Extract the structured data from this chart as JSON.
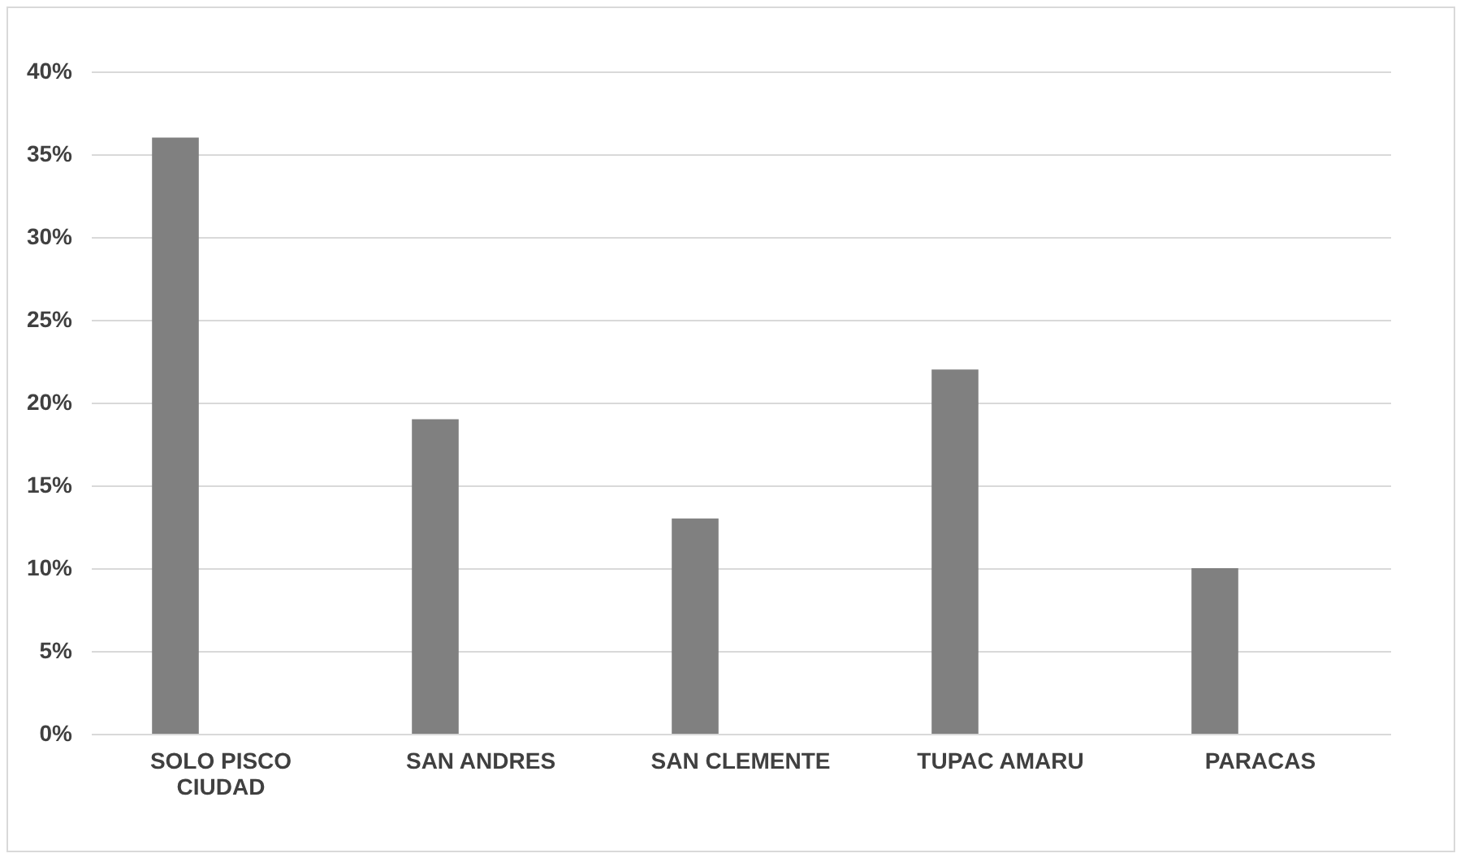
{
  "chart_data": {
    "type": "bar",
    "categories": [
      "SOLO PISCO CIUDAD",
      "SAN ANDRES",
      "SAN CLEMENTE",
      "TUPAC AMARU",
      "PARACAS"
    ],
    "values": [
      36,
      19,
      13,
      22,
      10
    ],
    "color": "#808080",
    "ylim": [
      0,
      40
    ],
    "yticks": [
      {
        "value": 0,
        "label": "0%"
      },
      {
        "value": 5,
        "label": "5%"
      },
      {
        "value": 10,
        "label": "10%"
      },
      {
        "value": 15,
        "label": "15%"
      },
      {
        "value": 20,
        "label": "20%"
      },
      {
        "value": 25,
        "label": "25%"
      },
      {
        "value": 30,
        "label": "30%"
      },
      {
        "value": 35,
        "label": "35%"
      },
      {
        "value": 40,
        "label": "40%"
      }
    ],
    "grid": "y"
  }
}
